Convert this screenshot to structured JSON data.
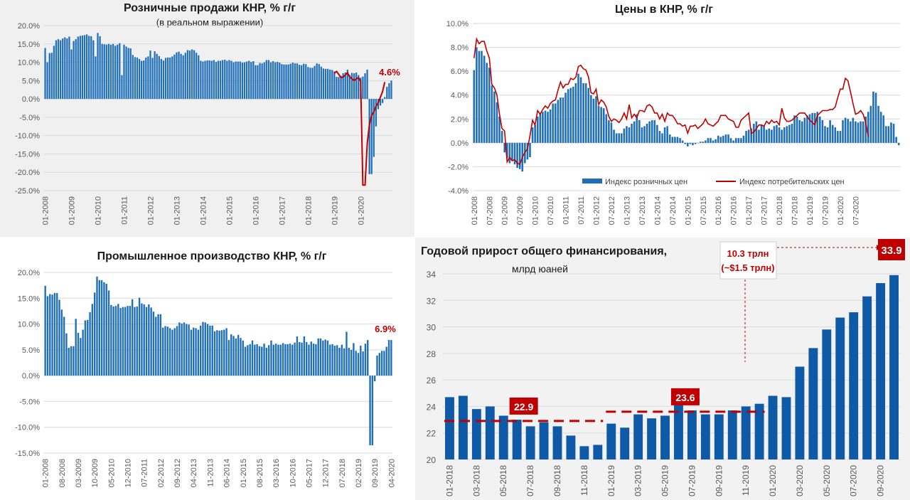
{
  "colors": {
    "bar": "#1f6fb8",
    "bar_dark": "#0e5aa7",
    "line_red": "#c00000",
    "accent_red": "#c00000",
    "grid": "#d9d9d9",
    "axis_text": "#595959",
    "title": "#1a1a1a"
  },
  "chart_data": [
    {
      "id": "retail",
      "type": "bar",
      "title": "Розничные продажи КНР, % г/г",
      "subtitle": "(в реальном выражении)",
      "ylim": [
        -25,
        20
      ],
      "yticks": [
        "20.0%",
        "15.0%",
        "10.0%",
        "5.0%",
        "0.0%",
        "-5.0%",
        "-10.0%",
        "-15.0%",
        "-20.0%",
        "-25.0%"
      ],
      "xticks": [
        "01-2008",
        "01-2009",
        "01-2010",
        "01-2011",
        "01-2012",
        "01-2013",
        "01-2014",
        "01-2015",
        "01-2016",
        "01-2017",
        "01-2018",
        "01-2019",
        "01-2020"
      ],
      "x_start": "2008-01",
      "values": [
        13.9,
        10.0,
        12.5,
        12.6,
        14.5,
        16.0,
        16.3,
        16.0,
        16.5,
        16.8,
        16.5,
        17.0,
        13.5,
        15.8,
        16.3,
        17.0,
        17.2,
        17.3,
        17.4,
        17.6,
        17.2,
        17.1,
        16.0,
        11.6,
        18.0,
        17.1,
        15.0,
        14.9,
        14.8,
        15.0,
        14.8,
        15.0,
        14.5,
        14.8,
        15.2,
        6.5,
        14.8,
        14.3,
        13.9,
        13.8,
        12.0,
        11.4,
        11.3,
        10.9,
        10.4,
        10.5,
        11.3,
        11.6,
        13.2,
        11.2,
        13.0,
        12.3,
        11.7,
        10.9,
        10.5,
        11.2,
        11.3,
        11.3,
        11.6,
        12.1,
        12.7,
        12.9,
        12.3,
        11.9,
        12.6,
        13.3,
        13.2,
        13.5,
        13.3,
        12.6,
        11.9,
        10.4,
        10.2,
        10.4,
        10.5,
        10.5,
        10.4,
        10.6,
        10.1,
        10.4,
        10.4,
        10.6,
        10.7,
        10.4,
        10.6,
        10.4,
        10.0,
        10.2,
        10.2,
        10.2,
        9.9,
        10.0,
        10.2,
        10.4,
        10.1,
        10.3,
        9.2,
        9.2,
        9.8,
        9.7,
        10.0,
        10.6,
        10.6,
        10.0,
        10.3,
        10.0,
        10.1,
        9.9,
        9.5,
        9.4,
        9.4,
        9.4,
        9.6,
        9.9,
        9.7,
        9.7,
        9.3,
        9.2,
        9.6,
        9.5,
        8.7,
        8.5,
        8.5,
        9.0,
        9.7,
        9.5,
        8.8,
        8.3,
        8.2,
        8.2,
        8.0,
        7.9,
        7.5,
        6.0,
        6.0,
        6.3,
        7.0,
        7.2,
        8.0,
        6.5,
        7.1,
        7.0,
        7.2,
        6.5,
        5.8,
        6.1,
        7.0,
        8.0,
        -20.5,
        -20.5,
        -15.8,
        -7.5,
        -2.8,
        -1.8,
        -1.1,
        0.5,
        3.3,
        4.3,
        5.0
      ],
      "overlay_line": [
        7.0,
        7.5,
        6.7,
        5.8,
        6.0,
        6.5,
        7.2,
        6.0,
        5.5,
        5.0,
        5.5,
        5.8,
        4.8,
        -23.5,
        -23.5,
        -12.0,
        -7.0,
        -4.5,
        -3.5,
        -2.0,
        -1.0,
        0.5,
        2.0,
        4.6
      ],
      "overlay_start_index": 132,
      "annotation": "4.6%"
    },
    {
      "id": "prices",
      "type": "bar",
      "title": "Цены в КНР, % г/г",
      "ylim": [
        -4,
        10
      ],
      "yticks": [
        "10.0%",
        "8.0%",
        "6.0%",
        "4.0%",
        "2.0%",
        "0.0%",
        "-2.0%",
        "-4.0%"
      ],
      "xticks": [
        "01-2008",
        "07-2008",
        "01-2009",
        "07-2009",
        "01-2010",
        "07-2010",
        "01-2011",
        "07-2011",
        "01-2012",
        "07-2012",
        "01-2013",
        "07-2013",
        "01-2014",
        "07-2014",
        "01-2015",
        "07-2015",
        "01-2016",
        "07-2016",
        "01-2017",
        "07-2017",
        "01-2018",
        "07-2018",
        "01-2019",
        "07-2019",
        "01-2020",
        "07-2020"
      ],
      "x_start": "2008-01",
      "series": [
        {
          "name": "Индекс розничных цен",
          "kind": "bar",
          "values": [
            6.1,
            8.0,
            7.7,
            7.7,
            7.3,
            6.7,
            6.3,
            4.8,
            4.3,
            3.4,
            2.2,
            1.0,
            -0.8,
            -1.3,
            -1.7,
            -1.5,
            -1.8,
            -2.1,
            -2.2,
            -2.4,
            -1.7,
            -1.4,
            -1.2,
            1.3,
            1.5,
            2.2,
            2.5,
            2.6,
            2.7,
            2.6,
            2.8,
            3.3,
            3.3,
            3.6,
            3.8,
            3.8,
            4.2,
            4.5,
            4.6,
            4.7,
            5.0,
            5.8,
            5.5,
            5.0,
            5.0,
            4.6,
            4.0,
            3.7,
            3.9,
            3.1,
            3.0,
            2.9,
            2.4,
            1.9,
            1.7,
            1.1,
            0.8,
            0.8,
            0.8,
            1.2,
            1.4,
            1.3,
            1.6,
            1.8,
            2.4,
            1.9,
            1.3,
            1.4,
            1.6,
            1.8,
            1.9,
            1.9,
            1.5,
            1.0,
            0.8,
            1.3,
            1.4,
            0.7,
            0.5,
            0.5,
            0.5,
            0.4,
            0.2,
            -0.1,
            -0.3,
            -0.1,
            -0.2,
            -0.1,
            0.0,
            0.1,
            0.1,
            0.2,
            0.4,
            0.4,
            0.2,
            0.3,
            0.6,
            0.5,
            0.6,
            0.7,
            0.7,
            0.4,
            0.2,
            0.4,
            0.4,
            0.4,
            0.6,
            1.0,
            1.1,
            1.2,
            1.6,
            1.8,
            1.1,
            1.5,
            1.4,
            1.1,
            1.2,
            1.1,
            1.4,
            1.5,
            1.3,
            1.1,
            1.3,
            1.4,
            1.5,
            1.6,
            2.3,
            2.2,
            1.9,
            1.8,
            2.1,
            2.3,
            2.4,
            2.5,
            2.5,
            2.6,
            2.2,
            1.9,
            1.4,
            1.3,
            1.9,
            1.5,
            1.3,
            1.0,
            1.0,
            1.9,
            2.1,
            2.0,
            1.8,
            2.1,
            1.8,
            1.7,
            1.8,
            1.8,
            2.2,
            2.6,
            3.1,
            4.3,
            4.2,
            3.1,
            2.6,
            2.3,
            1.4,
            1.4,
            1.7,
            1.6,
            0.5,
            -0.2
          ],
          "color": "#1f6fb8"
        },
        {
          "name": "Индекс потребительских цен",
          "kind": "line",
          "values": [
            7.1,
            8.7,
            8.3,
            8.5,
            8.5,
            7.7,
            7.1,
            4.9,
            4.6,
            4.0,
            2.4,
            1.2,
            1.0,
            -1.6,
            -1.2,
            -1.5,
            -1.4,
            -1.7,
            -1.8,
            -1.2,
            -0.8,
            -0.5,
            0.6,
            1.9,
            1.5,
            2.7,
            2.4,
            2.8,
            3.1,
            2.9,
            3.3,
            3.5,
            3.6,
            4.4,
            5.1,
            4.6,
            4.9,
            4.9,
            5.4,
            5.3,
            5.5,
            6.4,
            6.5,
            6.2,
            6.1,
            5.5,
            4.2,
            4.1,
            4.5,
            3.2,
            3.6,
            3.4,
            3.0,
            2.2,
            1.8,
            2.0,
            1.9,
            1.7,
            2.0,
            2.5,
            2.0,
            3.2,
            2.1,
            2.4,
            2.1,
            2.7,
            2.7,
            2.6,
            3.1,
            3.2,
            3.0,
            2.5,
            2.5,
            2.0,
            2.4,
            1.8,
            2.5,
            2.3,
            2.3,
            2.0,
            1.6,
            1.6,
            1.4,
            1.5,
            0.8,
            1.4,
            1.4,
            1.5,
            1.2,
            1.4,
            1.6,
            2.0,
            1.6,
            1.5,
            1.4,
            1.6,
            1.8,
            2.3,
            2.3,
            2.3,
            2.0,
            1.9,
            1.8,
            1.3,
            1.3,
            1.9,
            2.1,
            2.3,
            2.5,
            0.8,
            0.9,
            1.2,
            1.5,
            1.5,
            1.4,
            1.8,
            1.6,
            1.9,
            1.7,
            1.8,
            1.5,
            2.9,
            2.1,
            1.8,
            1.8,
            1.9,
            2.1,
            2.3,
            2.5,
            2.5,
            2.5,
            2.2,
            1.9,
            1.7,
            1.5,
            2.3,
            2.5,
            2.7,
            2.7,
            2.7,
            2.8,
            2.8,
            3.0,
            3.8,
            4.5,
            4.5,
            5.4,
            5.2,
            4.3,
            3.3,
            2.4,
            2.5,
            2.7,
            2.4,
            1.7,
            0.5
          ],
          "color": "#c00000"
        }
      ],
      "legend": [
        {
          "label": "Индекс розничных цен",
          "kind": "bar"
        },
        {
          "label": "Индекс потребительских цен",
          "kind": "line"
        }
      ],
      "legend_position": "bottom"
    },
    {
      "id": "industry",
      "type": "bar",
      "title": "Промышленное производство КНР, % г/г",
      "ylim": [
        -15,
        20
      ],
      "yticks": [
        "20.0%",
        "15.0%",
        "10.0%",
        "5.0%",
        "0.0%",
        "-5.0%",
        "-10.0%",
        "-15.0%"
      ],
      "xticks": [
        "01-2008",
        "08-2008",
        "03-2009",
        "10-2009",
        "05-2010",
        "12-2010",
        "07-2011",
        "02-2012",
        "09-2012",
        "04-2013",
        "11-2013",
        "06-2014",
        "01-2015",
        "08-2015",
        "03-2016",
        "10-2016",
        "05-2017",
        "12-2017",
        "07-2018",
        "02-2019",
        "09-2019",
        "04-2020"
      ],
      "x_start": "2008-01",
      "values": [
        17.4,
        15.4,
        15.8,
        15.7,
        16.0,
        16.0,
        14.7,
        12.8,
        11.4,
        8.2,
        5.4,
        5.7,
        5.7,
        11.0,
        8.3,
        7.3,
        8.9,
        10.7,
        10.8,
        12.3,
        13.9,
        16.1,
        19.2,
        18.5,
        18.5,
        18.1,
        17.8,
        16.5,
        13.7,
        13.4,
        13.5,
        13.9,
        13.1,
        13.3,
        13.3,
        13.5,
        13.5,
        14.8,
        13.3,
        13.4,
        15.1,
        14.0,
        13.8,
        13.3,
        13.8,
        13.2,
        12.4,
        11.4,
        11.9,
        11.9,
        9.3,
        9.6,
        9.5,
        9.2,
        8.9,
        9.2,
        9.6,
        10.3,
        10.1,
        10.3,
        10.0,
        9.9,
        8.9,
        9.3,
        9.2,
        8.9,
        9.7,
        10.4,
        10.3,
        10.0,
        9.7,
        9.7,
        8.6,
        8.8,
        8.7,
        8.8,
        8.9,
        9.2,
        6.9,
        8.0,
        7.7,
        7.2,
        7.9,
        7.3,
        6.8,
        5.6,
        5.9,
        6.1,
        6.8,
        6.0,
        6.1,
        5.7,
        5.6,
        6.2,
        5.4,
        5.9,
        6.8,
        6.0,
        6.2,
        6.0,
        6.0,
        6.3,
        6.1,
        6.1,
        6.2,
        6.0,
        6.4,
        7.6,
        6.5,
        6.4,
        7.6,
        6.5,
        6.0,
        6.6,
        6.2,
        6.1,
        7.2,
        7.2,
        6.8,
        7.0,
        6.8,
        6.0,
        6.1,
        5.8,
        5.9,
        5.4,
        6.0,
        5.3,
        8.5,
        5.4,
        5.0,
        6.3,
        4.8,
        4.4,
        5.8,
        4.7,
        6.2,
        6.9,
        -13.5,
        -13.5,
        -1.1,
        3.9,
        4.4,
        4.8,
        4.8,
        5.6,
        6.9,
        6.9
      ],
      "annotation": "6.9%"
    },
    {
      "id": "financing",
      "type": "bar",
      "title": "Годовой прирост общего финансирования,",
      "subtitle": "млрд юаней",
      "ylim": [
        20,
        34
      ],
      "yticks": [
        "34",
        "32",
        "30",
        "28",
        "26",
        "24",
        "22",
        "20"
      ],
      "categories": [
        "01-2018",
        "02-2018",
        "03-2018",
        "04-2018",
        "05-2018",
        "06-2018",
        "07-2018",
        "08-2018",
        "09-2018",
        "10-2018",
        "11-2018",
        "12-2018",
        "01-2019",
        "02-2019",
        "03-2019",
        "04-2019",
        "05-2019",
        "06-2019",
        "07-2019",
        "08-2019",
        "09-2019",
        "10-2019",
        "11-2019",
        "12-2019",
        "01-2020",
        "02-2020",
        "03-2020",
        "04-2020",
        "05-2020",
        "06-2020",
        "07-2020",
        "08-2020",
        "09-2020",
        "10-2020"
      ],
      "xticks": [
        "01-2018",
        "03-2018",
        "05-2018",
        "07-2018",
        "09-2018",
        "11-2018",
        "01-2019",
        "03-2019",
        "05-2019",
        "07-2019",
        "09-2019",
        "11-2019",
        "01-2020",
        "03-2020",
        "05-2020",
        "07-2020",
        "09-2020"
      ],
      "values": [
        24.7,
        24.8,
        23.8,
        24.0,
        23.3,
        23.0,
        22.5,
        22.8,
        22.5,
        21.8,
        21.0,
        21.1,
        22.7,
        22.4,
        23.4,
        23.1,
        23.3,
        24.2,
        23.7,
        23.4,
        23.4,
        23.7,
        24.0,
        24.2,
        24.8,
        24.7,
        27.0,
        28.4,
        29.8,
        30.7,
        31.1,
        32.3,
        33.3,
        33.9
      ],
      "reference_lines": [
        {
          "value": 22.9,
          "from": "01-2018",
          "to": "12-2018",
          "label": "22.9"
        },
        {
          "value": 23.6,
          "from": "01-2019",
          "to": "12-2019",
          "label": "23.6"
        }
      ],
      "callout": {
        "label": "10.3 трлн",
        "sublabel": "(~$1.5 трлн)"
      },
      "last_label": "33.9"
    }
  ]
}
